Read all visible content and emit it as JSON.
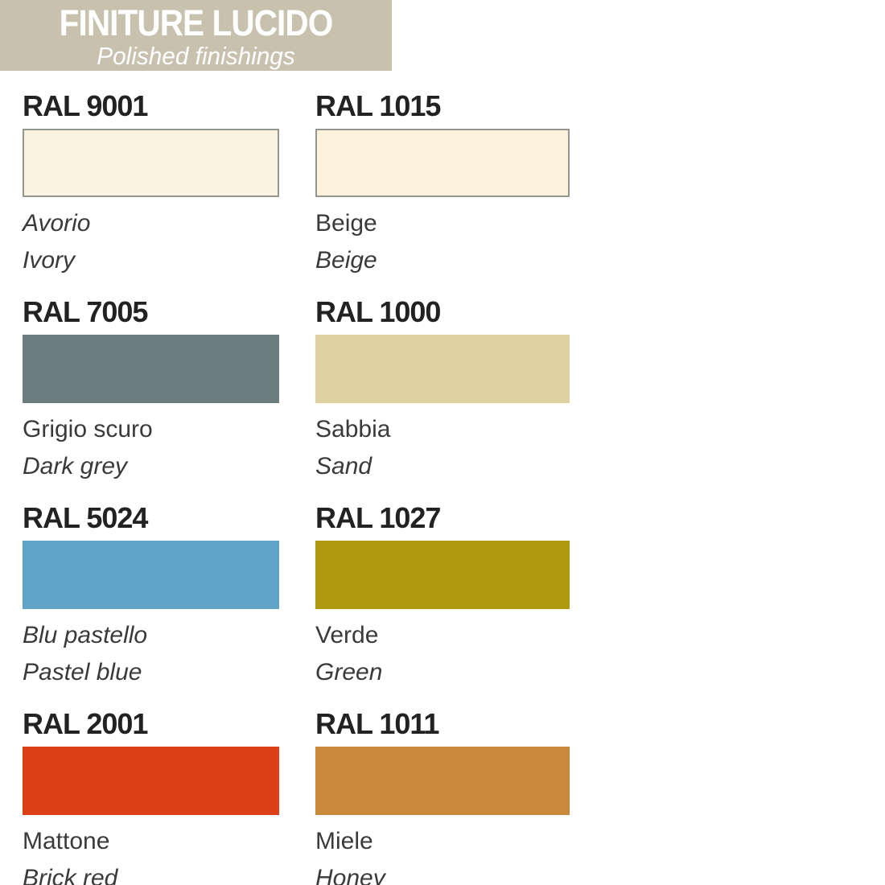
{
  "header": {
    "title": "FINITURE LUCIDO",
    "subtitle": "Polished finishings",
    "background": "#c7c1ae",
    "text_color": "#ffffff"
  },
  "swatches": [
    {
      "code": "RAL 9001",
      "name_it": "Avorio",
      "name_en": "Ivory",
      "color": "#faf3e2",
      "bordered": true,
      "name_it_italic": true
    },
    {
      "code": "RAL 1015",
      "name_it": "Beige",
      "name_en": "Beige",
      "color": "#fdf3dd",
      "bordered": true,
      "name_it_italic": false
    },
    {
      "code": "RAL 7005",
      "name_it": "Grigio scuro",
      "name_en": "Dark grey",
      "color": "#6d7c7c",
      "bordered": false,
      "name_it_italic": false
    },
    {
      "code": "RAL 1000",
      "name_it": "Sabbia",
      "name_en": "Sand",
      "color": "#ddd2a0",
      "bordered": false,
      "name_it_italic": false
    },
    {
      "code": "RAL 5024",
      "name_it": "Blu pastello",
      "name_en": "Pastel blue",
      "color": "#5fa3c6",
      "bordered": false,
      "name_it_italic": true
    },
    {
      "code": "RAL 1027",
      "name_it": "Verde",
      "name_en": "Green",
      "color": "#ae990f",
      "bordered": false,
      "name_it_italic": false
    },
    {
      "code": "RAL 2001",
      "name_it": "Mattone",
      "name_en": "Brick red",
      "color": "#dc4014",
      "bordered": false,
      "name_it_italic": false
    },
    {
      "code": "RAL 1011",
      "name_it": "Miele",
      "name_en": "Honey",
      "color": "#c8893d",
      "bordered": false,
      "name_it_italic": false
    }
  ]
}
